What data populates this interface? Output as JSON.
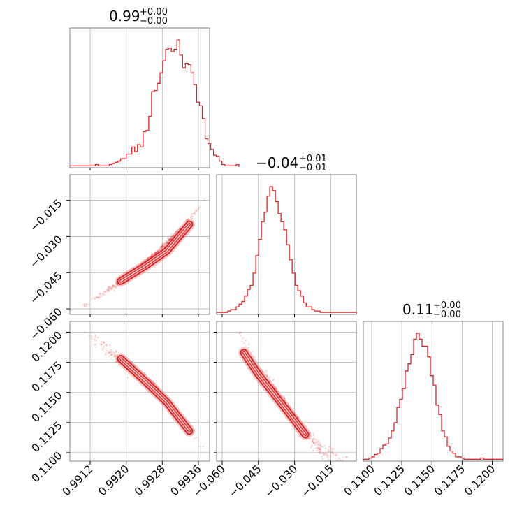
{
  "chart_data": {
    "type": "corner",
    "grid": true,
    "colors": {
      "series": "#d62728",
      "grid": "#b0b0b0",
      "frame": "#808080"
    },
    "parameters": [
      {
        "title_value": "0.99",
        "title_plus": "+0.00",
        "title_minus": "−0.00",
        "range": [
          0.99075,
          0.99385
        ],
        "ticks": [
          0.9912,
          0.992,
          0.9928,
          0.9936
        ],
        "tick_labels": [
          "0.9912",
          "0.9920",
          "0.9928",
          "0.9936"
        ],
        "histogram": {
          "bin_start": 0.99075,
          "bin_width": 6.25e-05,
          "counts": [
            1,
            1,
            1,
            1,
            1,
            1,
            1,
            1,
            1,
            2,
            1,
            1,
            1,
            1,
            2,
            3,
            4,
            5,
            7,
            7,
            11,
            11,
            17,
            13,
            19,
            17,
            30,
            31,
            43,
            64,
            65,
            71,
            80,
            90,
            100,
            101,
            98,
            100,
            108,
            95,
            84,
            88,
            87,
            80,
            70,
            55,
            52,
            41,
            24,
            20,
            15,
            10,
            9,
            5,
            2,
            1,
            1,
            1,
            1,
            2
          ]
        }
      },
      {
        "title_value": "−0.04",
        "title_plus": "+0.01",
        "title_minus": "−0.01",
        "range": [
          -0.0623,
          -0.0044
        ],
        "ticks": [
          -0.06,
          -0.045,
          -0.03,
          -0.015
        ],
        "tick_labels": [
          "−0.060",
          "−0.045",
          "−0.030",
          "−0.015"
        ],
        "histogram": {
          "bin_start": -0.0623,
          "bin_width": 0.00116,
          "counts": [
            1,
            1,
            1,
            1,
            2,
            3,
            3,
            5,
            7,
            9,
            13,
            18,
            21,
            30,
            43,
            55,
            68,
            75,
            87,
            94,
            91,
            83,
            74,
            68,
            62,
            51,
            40,
            30,
            21,
            17,
            13,
            8,
            5,
            5,
            3,
            2,
            2,
            1,
            1,
            1,
            1,
            1,
            1,
            1,
            1,
            1,
            1,
            1,
            1,
            1
          ]
        }
      },
      {
        "title_value": "0.11",
        "title_plus": "+0.00",
        "title_minus": "−0.00",
        "range": [
          0.1093,
          0.1209
        ],
        "ticks": [
          0.11,
          0.1125,
          0.115,
          0.1175,
          0.12
        ],
        "tick_labels": [
          "0.1100",
          "0.1125",
          "0.1150",
          "0.1175",
          "0.1200"
        ],
        "histogram": {
          "bin_start": 0.1093,
          "bin_width": 0.000232,
          "counts": [
            1,
            1,
            2,
            3,
            5,
            6,
            10,
            13,
            14,
            19,
            25,
            32,
            45,
            52,
            61,
            76,
            82,
            90,
            103,
            108,
            103,
            97,
            97,
            88,
            72,
            64,
            47,
            39,
            25,
            20,
            12,
            8,
            6,
            3,
            3,
            2,
            1,
            1,
            1,
            1,
            1,
            1,
            2,
            1,
            1,
            1,
            1,
            1,
            1,
            1
          ]
        }
      }
    ],
    "scatter": [
      {
        "row": 1,
        "col": 0,
        "band_ridge": [
          [
            0.99105,
            -0.059
          ],
          [
            0.99185,
            -0.049
          ],
          [
            0.9926,
            -0.038
          ],
          [
            0.9933,
            -0.025
          ],
          [
            0.99375,
            -0.015
          ]
        ],
        "contour_ridge": [
          [
            0.99188,
            -0.0485
          ],
          [
            0.9924,
            -0.0425
          ],
          [
            0.9929,
            -0.036
          ],
          [
            0.9934,
            -0.025
          ]
        ],
        "band_halfwidth": 0.0006
      },
      {
        "row": 2,
        "col": 0,
        "band_ridge": [
          [
            0.99105,
            0.1201
          ],
          [
            0.99185,
            0.1178
          ],
          [
            0.9926,
            0.1155
          ],
          [
            0.9933,
            0.1125
          ],
          [
            0.99375,
            0.1103
          ]
        ],
        "contour_ridge": [
          [
            0.99188,
            0.1178
          ],
          [
            0.9924,
            0.116
          ],
          [
            0.9929,
            0.1142
          ],
          [
            0.9934,
            0.1118
          ]
        ],
        "band_halfwidth": 0.00025
      },
      {
        "row": 2,
        "col": 1,
        "band_ridge": [
          [
            -0.0545,
            0.1205
          ],
          [
            -0.046,
            0.1172
          ],
          [
            -0.037,
            0.115
          ],
          [
            -0.028,
            0.1122
          ],
          [
            -0.018,
            0.11
          ],
          [
            -0.008,
            0.1095
          ]
        ],
        "contour_ridge": [
          [
            -0.051,
            0.1183
          ],
          [
            -0.045,
            0.1165
          ],
          [
            -0.039,
            0.115
          ],
          [
            -0.032,
            0.1132
          ],
          [
            -0.0255,
            0.1115
          ]
        ],
        "band_halfwidth": 0.0003
      }
    ]
  }
}
